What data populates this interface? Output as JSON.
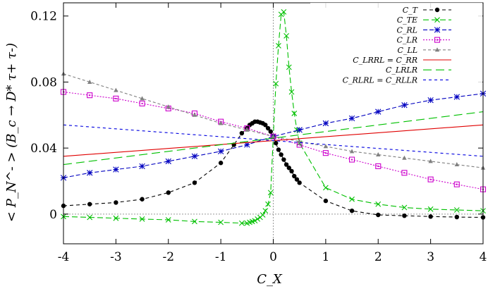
{
  "chart_data": {
    "type": "line",
    "xlabel": "C_X",
    "ylabel": "< P_N^- > (B_c → D* τ+ τ-)",
    "xlim": [
      -4,
      4
    ],
    "ylim": [
      -0.018,
      0.128
    ],
    "xticks": [
      -4,
      -3,
      -2,
      -1,
      0,
      1,
      2,
      3,
      4
    ],
    "xtick_labels": [
      "-4",
      "-3",
      "-2",
      "-1",
      "0",
      "1",
      "2",
      "3",
      "4"
    ],
    "yticks": [
      0,
      0.04,
      0.08,
      0.12
    ],
    "ytick_labels": [
      "0",
      "0.04",
      "0.08",
      "0.12"
    ],
    "grid": false,
    "legend_position": "top-right",
    "reference_lines": [
      {
        "orientation": "horizontal",
        "value": 0,
        "color": "#999999"
      },
      {
        "orientation": "vertical",
        "value": 0,
        "color": "#999999"
      }
    ],
    "series": [
      {
        "name": "C_T",
        "color": "#000000",
        "dash": "5,4",
        "marker": "circle",
        "x": [
          -4,
          -3.5,
          -3,
          -2.5,
          -2,
          -1.5,
          -1,
          -0.75,
          -0.6,
          -0.5,
          -0.45,
          -0.4,
          -0.35,
          -0.3,
          -0.25,
          -0.2,
          -0.15,
          -0.1,
          -0.05,
          0,
          0.05,
          0.1,
          0.15,
          0.2,
          0.25,
          0.3,
          0.35,
          0.4,
          0.45,
          0.5,
          1,
          1.5,
          2,
          2.5,
          3,
          3.5,
          4
        ],
        "y": [
          0.005,
          0.006,
          0.007,
          0.009,
          0.013,
          0.019,
          0.031,
          0.042,
          0.049,
          0.052,
          0.054,
          0.055,
          0.056,
          0.056,
          0.0555,
          0.055,
          0.054,
          0.052,
          0.05,
          0.047,
          0.043,
          0.039,
          0.036,
          0.033,
          0.03,
          0.028,
          0.026,
          0.023,
          0.021,
          0.019,
          0.008,
          0.002,
          -0.0005,
          -0.001,
          -0.0015,
          -0.0018,
          -0.002
        ]
      },
      {
        "name": "C_TE",
        "color": "#00c000",
        "dash": "8,4",
        "marker": "x",
        "x": [
          -4,
          -3.5,
          -3,
          -2.5,
          -2,
          -1.5,
          -1,
          -0.6,
          -0.5,
          -0.45,
          -0.4,
          -0.35,
          -0.3,
          -0.25,
          -0.2,
          -0.15,
          -0.1,
          -0.05,
          0,
          0.05,
          0.1,
          0.15,
          0.2,
          0.25,
          0.3,
          0.35,
          0.4,
          0.45,
          0.5,
          1,
          1.5,
          2,
          2.5,
          3,
          3.5,
          4
        ],
        "y": [
          -0.0015,
          -0.002,
          -0.0025,
          -0.003,
          -0.0035,
          -0.0045,
          -0.005,
          -0.0055,
          -0.0055,
          -0.005,
          -0.0045,
          -0.004,
          -0.003,
          -0.002,
          -0.0005,
          0.002,
          0.006,
          0.013,
          0.047,
          0.079,
          0.102,
          0.121,
          0.1225,
          0.108,
          0.089,
          0.074,
          0.061,
          0.051,
          0.043,
          0.016,
          0.009,
          0.006,
          0.004,
          0.003,
          0.0025,
          0.002
        ]
      },
      {
        "name": "C_RL",
        "color": "#0000c0",
        "dash": "6,3",
        "marker": "star",
        "x": [
          -4,
          -3.5,
          -3,
          -2.5,
          -2,
          -1.5,
          -1,
          -0.5,
          0,
          0.5,
          1,
          1.5,
          2,
          2.5,
          3,
          3.5,
          4
        ],
        "y": [
          0.022,
          0.025,
          0.027,
          0.029,
          0.032,
          0.035,
          0.038,
          0.042,
          0.047,
          0.051,
          0.055,
          0.058,
          0.062,
          0.066,
          0.069,
          0.071,
          0.073
        ]
      },
      {
        "name": "C_LR",
        "color": "#cc00cc",
        "dash": "2,2",
        "marker": "square",
        "x": [
          -4,
          -3.5,
          -3,
          -2.5,
          -2,
          -1.5,
          -1,
          -0.5,
          0,
          0.5,
          1,
          1.5,
          2,
          2.5,
          3,
          3.5,
          4
        ],
        "y": [
          0.074,
          0.072,
          0.07,
          0.067,
          0.064,
          0.061,
          0.056,
          0.052,
          0.047,
          0.042,
          0.037,
          0.033,
          0.029,
          0.025,
          0.021,
          0.018,
          0.015
        ]
      },
      {
        "name": "C_LL",
        "color": "#808080",
        "dash": "4,3",
        "marker": "triangle",
        "x": [
          -4,
          -3.5,
          -3,
          -2.5,
          -2,
          -1.5,
          -1,
          -0.5,
          0,
          0.5,
          1,
          1.5,
          2,
          2.5,
          3,
          3.5,
          4
        ],
        "y": [
          0.085,
          0.08,
          0.075,
          0.07,
          0.065,
          0.06,
          0.055,
          0.051,
          0.047,
          0.044,
          0.041,
          0.038,
          0.036,
          0.034,
          0.032,
          0.03,
          0.028
        ]
      },
      {
        "name": "C_LRRL = C_RR",
        "color": "#e00000",
        "dash": "",
        "marker": "none",
        "x": [
          -4,
          4
        ],
        "y": [
          0.035,
          0.054
        ]
      },
      {
        "name": "C_LRLR",
        "color": "#00c000",
        "dash": "12,6",
        "marker": "none",
        "x": [
          -4,
          4
        ],
        "y": [
          0.03,
          0.062
        ]
      },
      {
        "name": "C_RLRL = C_RLLR",
        "color": "#0000e0",
        "dash": "4,4",
        "marker": "none",
        "x": [
          -4,
          4
        ],
        "y": [
          0.054,
          0.035
        ]
      }
    ]
  }
}
